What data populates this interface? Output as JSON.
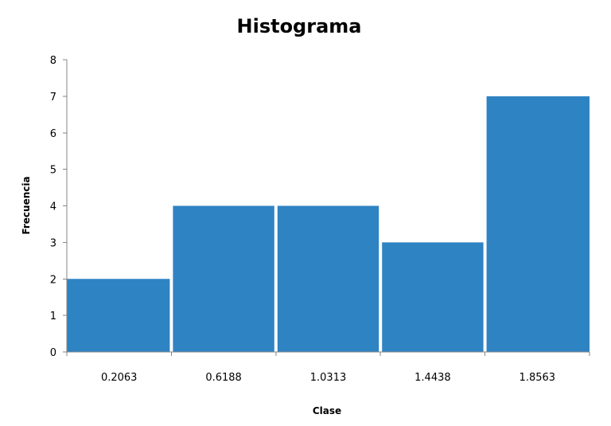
{
  "chart_data": {
    "type": "bar",
    "title": "Histograma",
    "xlabel": "Clase",
    "ylabel": "Frecuencia",
    "categories": [
      "0.2063",
      "0.6188",
      "1.0313",
      "1.4438",
      "1.8563"
    ],
    "values": [
      2,
      4,
      4,
      3,
      7
    ],
    "ylim": [
      0,
      8
    ],
    "yticks": [
      0,
      1,
      2,
      3,
      4,
      5,
      6,
      7,
      8
    ],
    "grid": false,
    "legend": "none",
    "bar_color": "#2e83c3",
    "axis_color": "#868686"
  }
}
